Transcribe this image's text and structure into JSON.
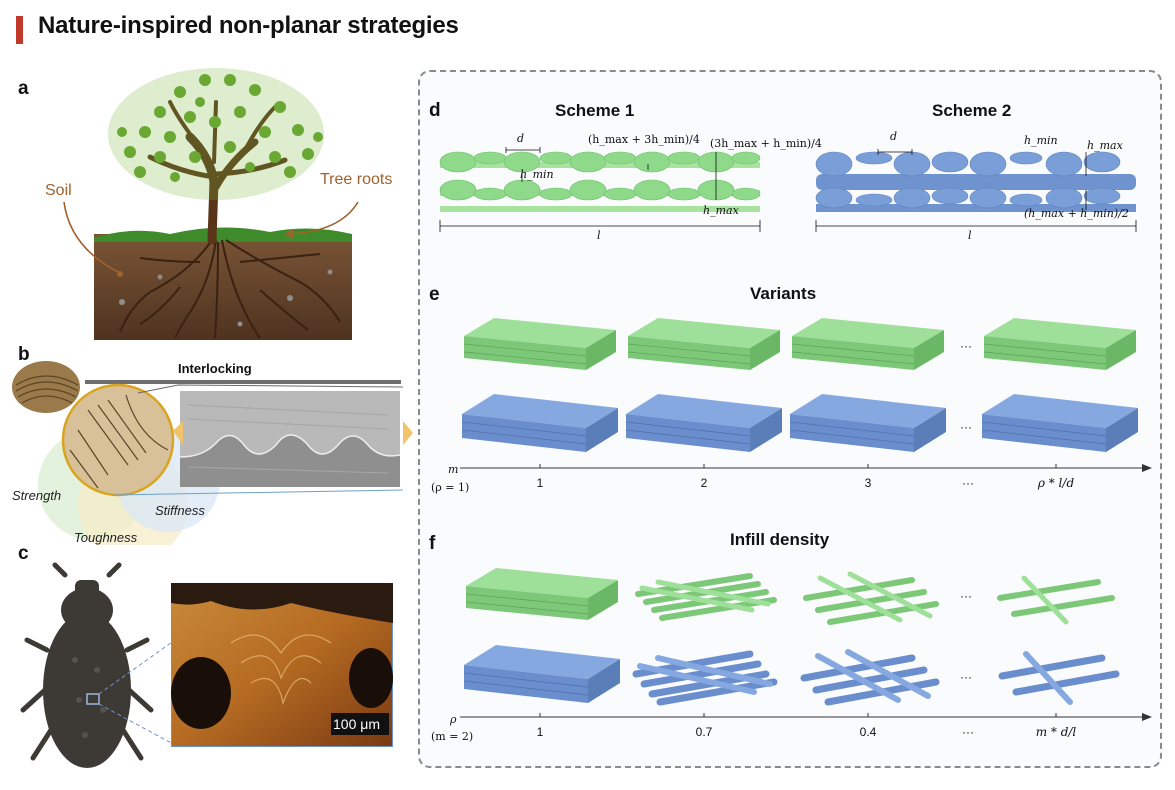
{
  "title": "Nature-inspired non-planar strategies",
  "colors": {
    "accent": "#c0392b",
    "green": "#8fd98a",
    "blue": "#7a9fd8"
  },
  "panels": {
    "a": {
      "letter": "a",
      "soil": "Soil",
      "roots": "Tree roots"
    },
    "b": {
      "letter": "b",
      "interlocking": "Interlocking",
      "strength": "Strength",
      "stiffness": "Stiffness",
      "toughness": "Toughness"
    },
    "c": {
      "letter": "c",
      "scale_bar": "100 μm"
    },
    "d": {
      "letter": "d",
      "scheme1": "Scheme 1",
      "scheme2": "Scheme 2",
      "d_sym": "d",
      "l_sym": "l",
      "hmin": "h_min",
      "hmax": "h_max",
      "eq1": "(h_max + 3h_min)/4",
      "eq2": "(3h_max + h_min)/4",
      "eq3": "(h_max + h_min)/2"
    },
    "e": {
      "letter": "e",
      "heading": "Variants",
      "axis_var": "m",
      "axis_cond": "(ρ = 1)",
      "ticks": [
        "1",
        "2",
        "3",
        "···",
        "ρ * l/d"
      ]
    },
    "f": {
      "letter": "f",
      "heading": "Infill density",
      "axis_var": "ρ",
      "axis_cond": "(m = 2)",
      "ticks": [
        "1",
        "0.7",
        "0.4",
        "···",
        "m * d/l"
      ]
    },
    "ellipsis": "···"
  }
}
